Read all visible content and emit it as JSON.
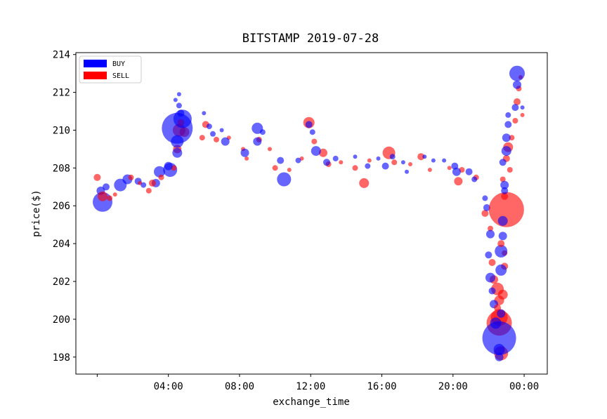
{
  "chart_data": {
    "type": "scatter",
    "title": "BITSTAMP 2019-07-28",
    "xlabel": "exchange_time",
    "ylabel": "price($)",
    "xlim_hours": [
      -1.2,
      25.3
    ],
    "ylim": [
      197.1,
      214.1
    ],
    "x_tick_labels": [
      {
        "hours": 0,
        "label": ""
      },
      {
        "hours": 4,
        "label": "04:00"
      },
      {
        "hours": 8,
        "label": "08:00"
      },
      {
        "hours": 12,
        "label": "12:00"
      },
      {
        "hours": 16,
        "label": "16:00"
      },
      {
        "hours": 20,
        "label": "20:00"
      },
      {
        "hours": 24,
        "label": "00:00"
      }
    ],
    "y_ticks": [
      198,
      200,
      202,
      204,
      206,
      208,
      210,
      212,
      214
    ],
    "legend": {
      "position": "upper-left",
      "entries": [
        {
          "label": "BUY",
          "color": "#0000ff"
        },
        {
          "label": "SELL",
          "color": "#ff0000"
        }
      ]
    },
    "marker_alpha": 0.6,
    "series": [
      {
        "name": "BUY",
        "color": "#0000ff",
        "points": [
          [
            0.3,
            206.2,
            14
          ],
          [
            0.2,
            206.8,
            6
          ],
          [
            0.5,
            207.0,
            5
          ],
          [
            1.3,
            207.1,
            9
          ],
          [
            1.7,
            207.4,
            7
          ],
          [
            2.3,
            207.3,
            5
          ],
          [
            2.6,
            207.1,
            4
          ],
          [
            3.3,
            207.2,
            6
          ],
          [
            3.5,
            207.8,
            8
          ],
          [
            4.1,
            207.9,
            10
          ],
          [
            4.0,
            208.1,
            6
          ],
          [
            4.5,
            208.8,
            7
          ],
          [
            4.5,
            209.4,
            9
          ],
          [
            4.5,
            210.1,
            22
          ],
          [
            4.8,
            210.6,
            13
          ],
          [
            4.6,
            211.3,
            4
          ],
          [
            4.6,
            211.9,
            3
          ],
          [
            4.4,
            211.6,
            3
          ],
          [
            4.7,
            210.9,
            5
          ],
          [
            6.0,
            210.9,
            3
          ],
          [
            6.3,
            210.2,
            4
          ],
          [
            6.5,
            209.8,
            4
          ],
          [
            7.0,
            210.0,
            3
          ],
          [
            7.2,
            209.4,
            6
          ],
          [
            8.3,
            208.8,
            6
          ],
          [
            9.0,
            210.1,
            8
          ],
          [
            9.0,
            209.4,
            6
          ],
          [
            9.3,
            209.9,
            4
          ],
          [
            10.3,
            208.4,
            5
          ],
          [
            10.5,
            207.4,
            10
          ],
          [
            11.3,
            208.4,
            4
          ],
          [
            11.9,
            210.3,
            5
          ],
          [
            12.1,
            209.9,
            4
          ],
          [
            12.3,
            208.9,
            7
          ],
          [
            12.9,
            208.3,
            5
          ],
          [
            13.4,
            208.5,
            4
          ],
          [
            14.5,
            208.6,
            3
          ],
          [
            15.2,
            208.1,
            4
          ],
          [
            15.8,
            208.5,
            3
          ],
          [
            16.2,
            208.1,
            5
          ],
          [
            16.6,
            208.6,
            4
          ],
          [
            17.2,
            208.3,
            3
          ],
          [
            17.4,
            207.8,
            3
          ],
          [
            18.4,
            208.6,
            3
          ],
          [
            18.9,
            208.4,
            3
          ],
          [
            19.5,
            208.4,
            3
          ],
          [
            20.1,
            208.1,
            5
          ],
          [
            20.2,
            207.8,
            6
          ],
          [
            20.9,
            207.8,
            5
          ],
          [
            21.2,
            207.4,
            4
          ],
          [
            21.8,
            206.4,
            4
          ],
          [
            21.9,
            205.9,
            5
          ],
          [
            22.1,
            204.5,
            6
          ],
          [
            22.0,
            203.4,
            5
          ],
          [
            22.1,
            202.2,
            7
          ],
          [
            22.2,
            201.5,
            5
          ],
          [
            22.3,
            200.8,
            6
          ],
          [
            22.4,
            199.8,
            8
          ],
          [
            22.6,
            199.0,
            24
          ],
          [
            22.6,
            198.4,
            8
          ],
          [
            22.6,
            198.0,
            6
          ],
          [
            22.7,
            203.6,
            9
          ],
          [
            22.7,
            202.6,
            8
          ],
          [
            22.8,
            204.4,
            6
          ],
          [
            22.8,
            205.2,
            7
          ],
          [
            22.9,
            207.1,
            6
          ],
          [
            22.8,
            208.3,
            5
          ],
          [
            23.0,
            208.9,
            7
          ],
          [
            23.0,
            209.6,
            6
          ],
          [
            23.1,
            210.3,
            5
          ],
          [
            23.1,
            210.8,
            4
          ],
          [
            23.5,
            211.2,
            5
          ],
          [
            23.6,
            212.4,
            6
          ],
          [
            23.6,
            213.0,
            11
          ],
          [
            23.9,
            211.2,
            3
          ],
          [
            22.9,
            206.8,
            5
          ],
          [
            22.7,
            200.3,
            6
          ]
        ]
      },
      {
        "name": "SELL",
        "color": "#ff0000",
        "points": [
          [
            0.0,
            207.5,
            5
          ],
          [
            0.3,
            206.5,
            7
          ],
          [
            0.7,
            206.4,
            4
          ],
          [
            1.0,
            206.6,
            3
          ],
          [
            1.9,
            207.5,
            4
          ],
          [
            2.4,
            207.2,
            3
          ],
          [
            2.9,
            206.8,
            4
          ],
          [
            3.1,
            207.2,
            5
          ],
          [
            3.6,
            207.5,
            4
          ],
          [
            4.3,
            208.0,
            4
          ],
          [
            4.5,
            209.0,
            6
          ],
          [
            4.6,
            210.0,
            9
          ],
          [
            4.9,
            209.9,
            7
          ],
          [
            4.7,
            210.4,
            5
          ],
          [
            5.9,
            209.6,
            4
          ],
          [
            6.1,
            210.3,
            5
          ],
          [
            6.7,
            209.5,
            4
          ],
          [
            7.4,
            209.6,
            3
          ],
          [
            8.2,
            209.0,
            3
          ],
          [
            8.4,
            208.5,
            3
          ],
          [
            9.1,
            209.5,
            4
          ],
          [
            9.7,
            209.0,
            3
          ],
          [
            10.0,
            208.0,
            4
          ],
          [
            10.8,
            207.9,
            3
          ],
          [
            11.5,
            208.5,
            3
          ],
          [
            11.9,
            210.4,
            8
          ],
          [
            12.2,
            209.4,
            4
          ],
          [
            12.7,
            208.8,
            6
          ],
          [
            13.0,
            208.2,
            4
          ],
          [
            13.7,
            208.3,
            3
          ],
          [
            14.5,
            208.0,
            4
          ],
          [
            15.0,
            207.2,
            7
          ],
          [
            15.3,
            208.4,
            3
          ],
          [
            16.4,
            208.8,
            9
          ],
          [
            16.7,
            208.3,
            4
          ],
          [
            17.6,
            208.2,
            3
          ],
          [
            18.2,
            208.6,
            5
          ],
          [
            18.7,
            207.9,
            3
          ],
          [
            19.8,
            208.0,
            3
          ],
          [
            20.3,
            207.3,
            6
          ],
          [
            20.5,
            207.9,
            4
          ],
          [
            21.3,
            207.5,
            4
          ],
          [
            21.8,
            205.6,
            5
          ],
          [
            22.1,
            204.8,
            4
          ],
          [
            22.2,
            203.0,
            5
          ],
          [
            22.3,
            202.1,
            6
          ],
          [
            22.5,
            201.6,
            9
          ],
          [
            22.6,
            201.0,
            7
          ],
          [
            22.6,
            200.1,
            12
          ],
          [
            22.6,
            199.8,
            18
          ],
          [
            22.7,
            198.2,
            10
          ],
          [
            22.8,
            201.3,
            7
          ],
          [
            22.9,
            202.8,
            5
          ],
          [
            22.9,
            203.5,
            4
          ],
          [
            23.0,
            205.8,
            25
          ],
          [
            22.9,
            206.5,
            5
          ],
          [
            22.8,
            207.4,
            4
          ],
          [
            23.0,
            208.5,
            5
          ],
          [
            23.1,
            209.1,
            7
          ],
          [
            23.3,
            209.6,
            4
          ],
          [
            23.5,
            210.5,
            4
          ],
          [
            23.6,
            211.5,
            5
          ],
          [
            23.7,
            212.2,
            4
          ],
          [
            23.8,
            212.8,
            3
          ],
          [
            23.9,
            210.8,
            3
          ],
          [
            22.5,
            200.6,
            5
          ],
          [
            22.7,
            204.0,
            5
          ],
          [
            23.2,
            207.9,
            4
          ]
        ]
      }
    ]
  }
}
